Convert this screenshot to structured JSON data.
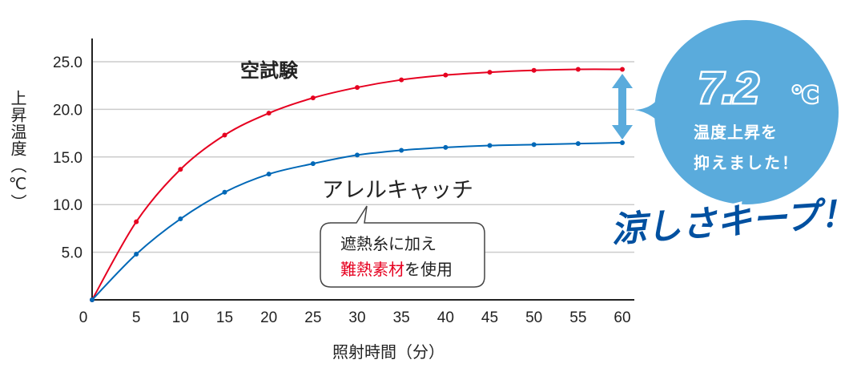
{
  "chart_data": {
    "type": "line",
    "xlabel": "照射時間（分）",
    "ylabel": "上昇温度（℃）",
    "x": [
      0,
      5,
      10,
      15,
      20,
      25,
      30,
      35,
      40,
      45,
      50,
      55,
      60
    ],
    "xticks": [
      "0",
      "5",
      "10",
      "15",
      "20",
      "25",
      "30",
      "35",
      "40",
      "45",
      "50",
      "55",
      "60"
    ],
    "yticks": [
      "5.0",
      "10.0",
      "15.0",
      "20.0",
      "25.0"
    ],
    "ytick_values": [
      5,
      10,
      15,
      20,
      25
    ],
    "xlim": [
      0,
      60
    ],
    "ylim": [
      0,
      27.5
    ],
    "grid": true,
    "series": [
      {
        "name": "空試験",
        "color": "#e60020",
        "values": [
          0,
          8.2,
          13.7,
          17.3,
          19.6,
          21.2,
          22.3,
          23.1,
          23.6,
          23.9,
          24.1,
          24.2,
          24.2
        ]
      },
      {
        "name": "アレルキャッチ",
        "color": "#0068b7",
        "values": [
          0,
          4.8,
          8.5,
          11.3,
          13.2,
          14.3,
          15.2,
          15.7,
          16.0,
          16.2,
          16.3,
          16.4,
          16.5
        ]
      }
    ],
    "annotations": {
      "callout_line1": "遮熱糸に加え",
      "callout_line2_red": "難熱素材",
      "callout_line2_rest": "を使用",
      "difference_value": "7.2",
      "difference_unit": "℃",
      "bubble_line1": "温度上昇を",
      "bubble_line2": "抑えました！",
      "slogan": "涼しさキープ！"
    },
    "colors": {
      "arrow": "#5aabdc",
      "bubble": "#5aabdc",
      "slogan": "#0050a0",
      "grid": "#cccccc"
    }
  }
}
